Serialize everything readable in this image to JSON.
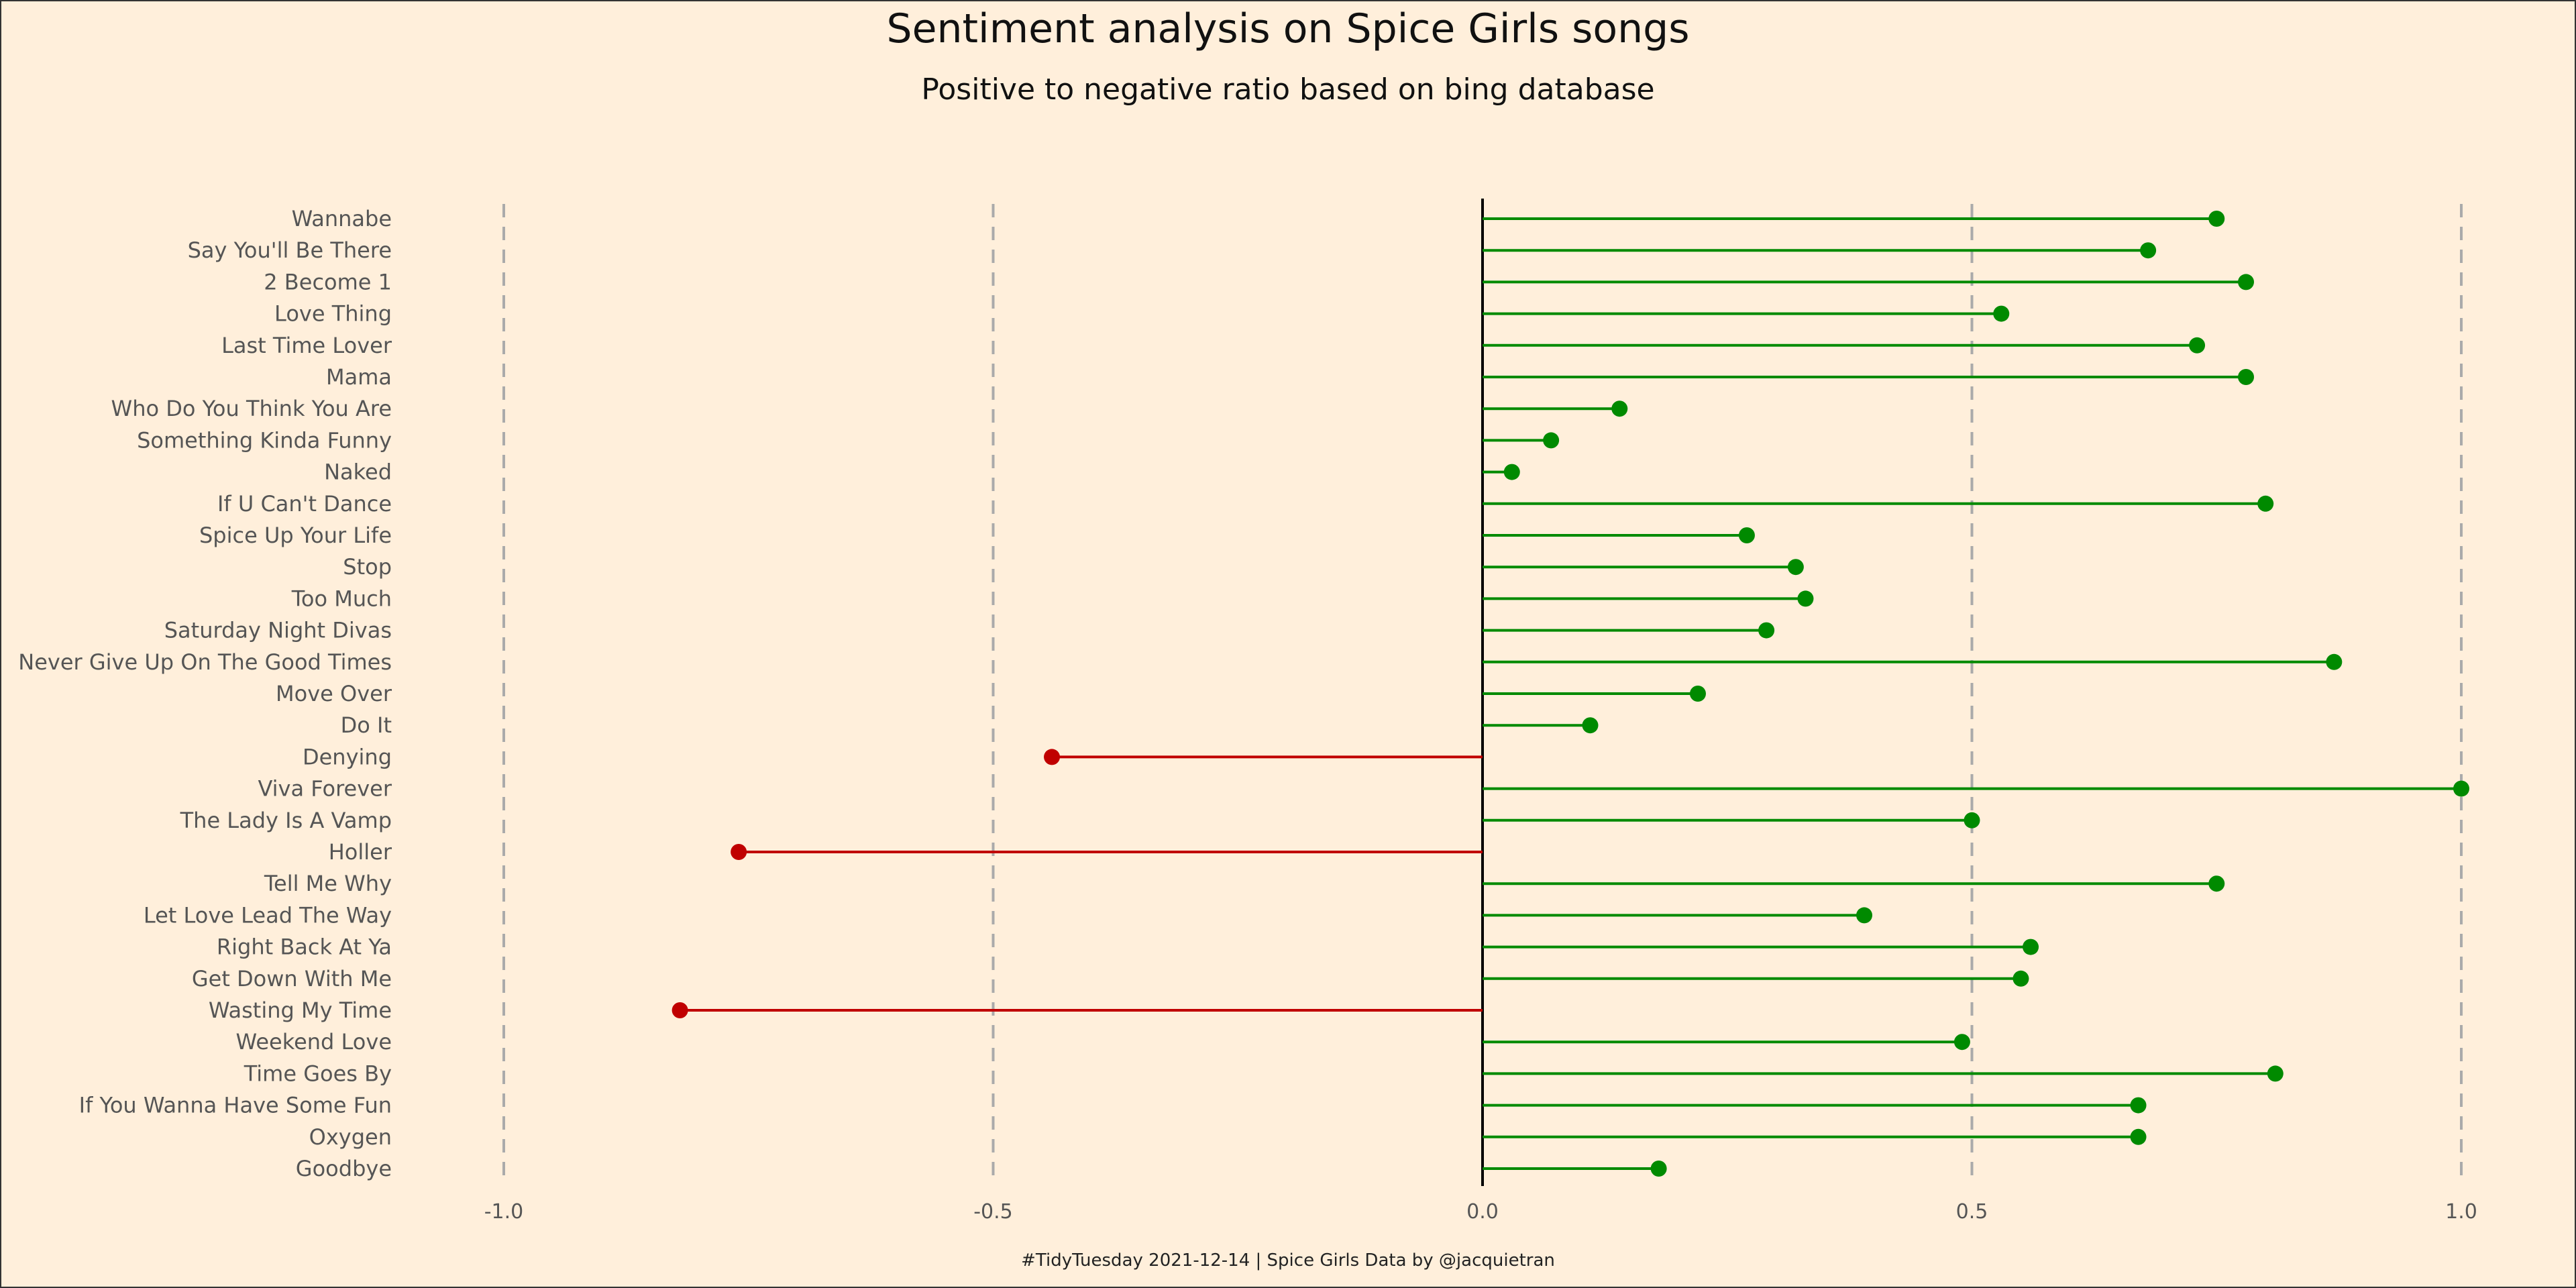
{
  "chart_data": {
    "type": "lollipop",
    "title": "Sentiment analysis on Spice Girls songs",
    "subtitle": "Positive to negative ratio based on bing database",
    "caption": "#TidyTuesday 2021-12-14 | Spice Girls Data by @jacquietran",
    "xlabel": "",
    "ylabel": "",
    "xlim": [
      -1.0,
      1.0
    ],
    "x_ticks": [
      -1.0,
      -0.5,
      0.0,
      0.5,
      1.0
    ],
    "x_tick_labels": [
      "-1.0",
      "-0.5",
      "0.0",
      "0.5",
      "1.0"
    ],
    "grid": "vertical dashed at ticks",
    "colors": {
      "positive": "#008A00",
      "negative": "#C00000",
      "grid": "#AAAAAA",
      "zero_line": "#000000",
      "background": "#FFEFDB"
    },
    "categories": [
      "Wannabe",
      "Say You'll Be There",
      "2 Become 1",
      "Love Thing",
      "Last Time Lover",
      "Mama",
      "Who Do You Think You Are",
      "Something Kinda Funny",
      "Naked",
      "If U Can't Dance",
      "Spice Up Your Life",
      "Stop",
      "Too Much",
      "Saturday Night Divas",
      "Never Give Up On The Good Times",
      "Move Over",
      "Do It",
      "Denying",
      "Viva Forever",
      "The Lady Is A Vamp",
      "Holler",
      "Tell Me Why",
      "Let Love Lead The Way",
      "Right Back At Ya",
      "Get Down With Me",
      "Wasting My Time",
      "Weekend Love",
      "Time Goes By",
      "If You Wanna Have Some Fun",
      "Oxygen",
      "Goodbye"
    ],
    "values": [
      0.75,
      0.68,
      0.78,
      0.53,
      0.73,
      0.78,
      0.14,
      0.07,
      0.03,
      0.8,
      0.27,
      0.32,
      0.33,
      0.29,
      0.87,
      0.22,
      0.11,
      -0.44,
      1.0,
      0.5,
      -0.76,
      0.75,
      0.39,
      0.56,
      0.55,
      -0.82,
      0.49,
      0.81,
      0.67,
      0.67,
      0.18
    ]
  }
}
